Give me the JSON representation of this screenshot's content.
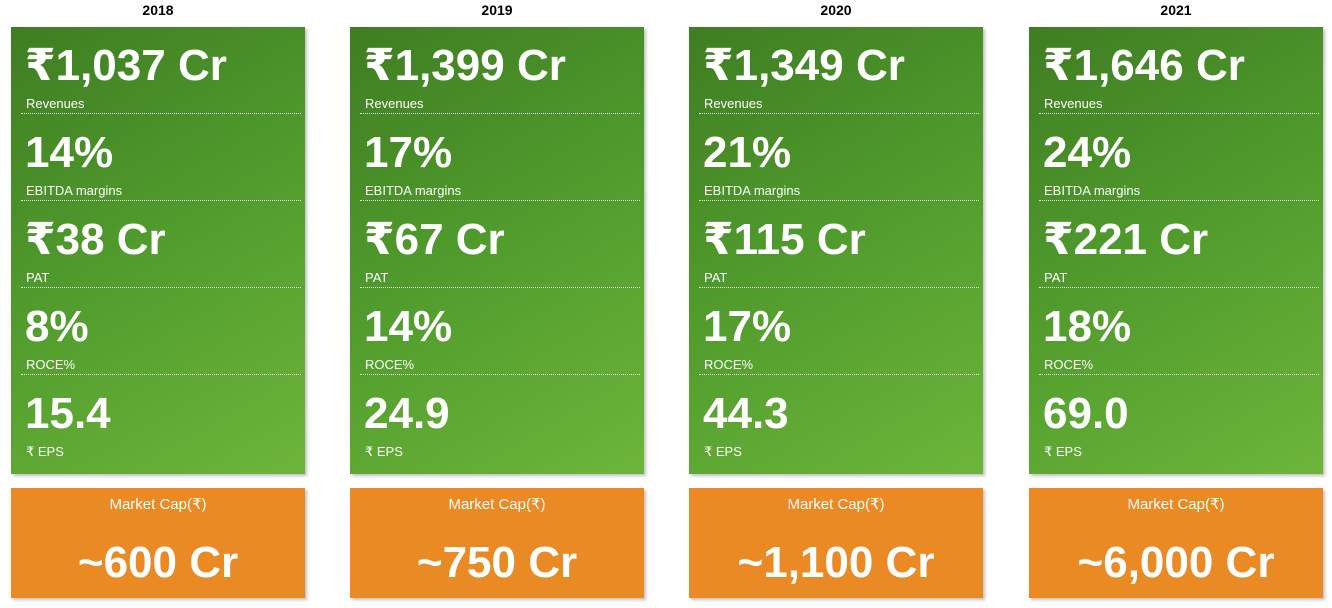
{
  "columns": [
    {
      "year": "2018",
      "metrics": [
        {
          "value": "₹1,037 Cr",
          "label": "Revenues"
        },
        {
          "value": "14%",
          "label": "EBITDA margins"
        },
        {
          "value": "₹38 Cr",
          "label": "PAT"
        },
        {
          "value": "8%",
          "label": "ROCE%"
        },
        {
          "value": "15.4",
          "label": "₹ EPS"
        }
      ],
      "market_cap": {
        "label": "Market Cap(₹)",
        "value": "~600 Cr"
      }
    },
    {
      "year": "2019",
      "metrics": [
        {
          "value": "₹1,399 Cr",
          "label": "Revenues"
        },
        {
          "value": "17%",
          "label": "EBITDA margins"
        },
        {
          "value": "₹67 Cr",
          "label": "PAT"
        },
        {
          "value": "14%",
          "label": "ROCE%"
        },
        {
          "value": "24.9",
          "label": "₹ EPS"
        }
      ],
      "market_cap": {
        "label": "Market Cap(₹)",
        "value": "~750 Cr"
      }
    },
    {
      "year": "2020",
      "metrics": [
        {
          "value": "₹1,349 Cr",
          "label": "Revenues"
        },
        {
          "value": "21%",
          "label": "EBITDA margins"
        },
        {
          "value": "₹115 Cr",
          "label": "PAT"
        },
        {
          "value": "17%",
          "label": "ROCE%"
        },
        {
          "value": "44.3",
          "label": "₹ EPS"
        }
      ],
      "market_cap": {
        "label": "Market Cap(₹)",
        "value": "~1,100 Cr"
      }
    },
    {
      "year": "2021",
      "metrics": [
        {
          "value": "₹1,646 Cr",
          "label": "Revenues"
        },
        {
          "value": "24%",
          "label": "EBITDA margins"
        },
        {
          "value": "₹221 Cr",
          "label": "PAT"
        },
        {
          "value": "18%",
          "label": "ROCE%"
        },
        {
          "value": "69.0",
          "label": "₹ EPS"
        }
      ],
      "market_cap": {
        "label": "Market Cap(₹)",
        "value": "~6,000 Cr"
      }
    }
  ],
  "colors": {
    "green_dark": "#3f7d22",
    "green_light": "#6db53a",
    "orange": "#e98a25",
    "text_on_card": "#ffffff"
  }
}
